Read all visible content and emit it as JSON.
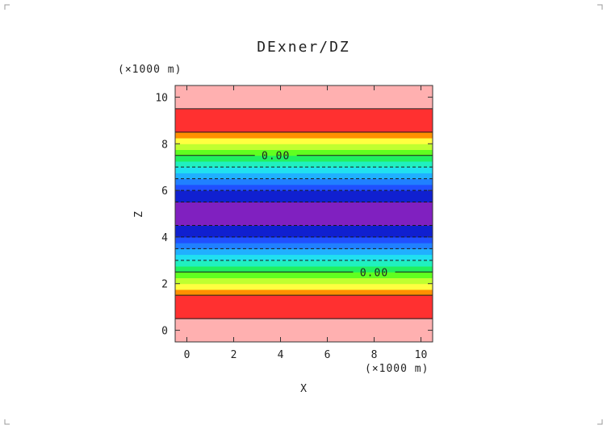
{
  "chart_data": {
    "type": "heatmap",
    "title": "DExner/DZ",
    "xlabel": "X",
    "ylabel": "Z",
    "x_unit": "(×1000 m)",
    "y_unit": "(×1000 m)",
    "xlim": [
      -0.5,
      10.5
    ],
    "ylim": [
      -0.5,
      10.5
    ],
    "x_ticks": [
      0,
      2,
      4,
      6,
      8,
      10
    ],
    "y_ticks": [
      0,
      2,
      4,
      6,
      8,
      10
    ],
    "bands": [
      {
        "z0": -0.5,
        "z1": 0.5,
        "color": "#ffb0b0"
      },
      {
        "z0": 0.5,
        "z1": 1.5,
        "color": "#ff3030"
      },
      {
        "z0": 1.5,
        "z1": 1.75,
        "color": "#ff9000"
      },
      {
        "z0": 1.75,
        "z1": 2.0,
        "color": "#ffff40"
      },
      {
        "z0": 2.0,
        "z1": 2.25,
        "color": "#c0ff30"
      },
      {
        "z0": 2.25,
        "z1": 2.5,
        "color": "#60ff20"
      },
      {
        "z0": 2.5,
        "z1": 2.75,
        "color": "#20f060"
      },
      {
        "z0": 2.75,
        "z1": 3.0,
        "color": "#20f0c0"
      },
      {
        "z0": 3.0,
        "z1": 3.25,
        "color": "#20e0f0"
      },
      {
        "z0": 3.25,
        "z1": 3.5,
        "color": "#20b0ff"
      },
      {
        "z0": 3.5,
        "z1": 3.75,
        "color": "#2080ff"
      },
      {
        "z0": 3.75,
        "z1": 4.0,
        "color": "#2050ff"
      },
      {
        "z0": 4.0,
        "z1": 4.5,
        "color": "#1020d0"
      },
      {
        "z0": 4.5,
        "z1": 5.5,
        "color": "#8020c0"
      },
      {
        "z0": 5.5,
        "z1": 6.0,
        "color": "#1020d0"
      },
      {
        "z0": 6.0,
        "z1": 6.25,
        "color": "#2050ff"
      },
      {
        "z0": 6.25,
        "z1": 6.5,
        "color": "#2080ff"
      },
      {
        "z0": 6.5,
        "z1": 6.75,
        "color": "#20b0ff"
      },
      {
        "z0": 6.75,
        "z1": 7.0,
        "color": "#20e0f0"
      },
      {
        "z0": 7.0,
        "z1": 7.25,
        "color": "#20f0c0"
      },
      {
        "z0": 7.25,
        "z1": 7.5,
        "color": "#20f060"
      },
      {
        "z0": 7.5,
        "z1": 7.75,
        "color": "#60ff20"
      },
      {
        "z0": 7.75,
        "z1": 8.0,
        "color": "#c0ff30"
      },
      {
        "z0": 8.0,
        "z1": 8.25,
        "color": "#ffff40"
      },
      {
        "z0": 8.25,
        "z1": 8.5,
        "color": "#ff9000"
      },
      {
        "z0": 8.5,
        "z1": 9.5,
        "color": "#ff3030"
      },
      {
        "z0": 9.5,
        "z1": 10.5,
        "color": "#ffb0b0"
      }
    ],
    "contours": [
      {
        "z": 0.5,
        "style": "solid"
      },
      {
        "z": 1.5,
        "style": "solid"
      },
      {
        "z": 2.5,
        "style": "solid",
        "label": "0.00",
        "label_x": 8.0
      },
      {
        "z": 3.0,
        "style": "dashed"
      },
      {
        "z": 3.5,
        "style": "dashed"
      },
      {
        "z": 4.0,
        "style": "dashed"
      },
      {
        "z": 4.5,
        "style": "dashed"
      },
      {
        "z": 5.5,
        "style": "dashed"
      },
      {
        "z": 6.0,
        "style": "dashed"
      },
      {
        "z": 6.5,
        "style": "dashed"
      },
      {
        "z": 7.0,
        "style": "dashed"
      },
      {
        "z": 7.5,
        "style": "solid",
        "label": "0.00",
        "label_x": 3.8
      },
      {
        "z": 8.5,
        "style": "solid"
      },
      {
        "z": 9.5,
        "style": "solid"
      }
    ],
    "grid": false,
    "legend": "none"
  }
}
